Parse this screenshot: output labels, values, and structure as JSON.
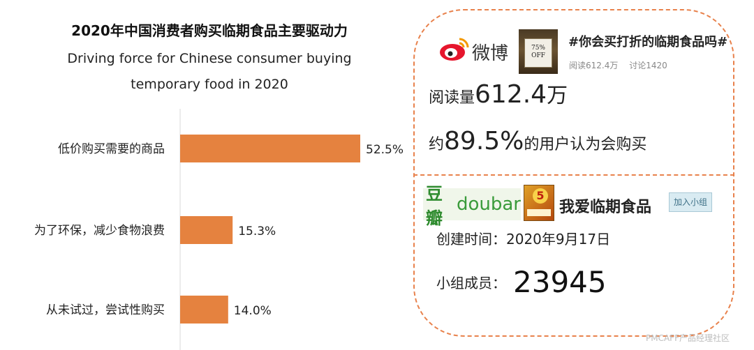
{
  "chart_data": {
    "type": "bar",
    "orientation": "horizontal",
    "title": "2020年中国消费者购买临期食品主要驱动力",
    "subtitle_lines": [
      "Driving force for Chinese consumer buying",
      "temporary food in 2020"
    ],
    "categories": [
      "低价购买需要的商品",
      "为了环保，减少食物浪费",
      "从未试过，尝试性购买"
    ],
    "values": [
      52.5,
      15.3,
      14.0
    ],
    "value_labels": [
      "52.5%",
      "15.3%",
      "14.0%"
    ],
    "bar_color": "#e5823f",
    "xlim": [
      0,
      60
    ],
    "grid": false
  },
  "weibo": {
    "logo_name": "weibo-logo",
    "name": "微博",
    "thumbnail_text": "75% OFF",
    "hashtag": "#你会买打折的临期食品吗#",
    "stat_reads": "阅读612.4万",
    "stat_discuss": "讨论1420",
    "reads_label": "阅读量",
    "reads_value": "612.4",
    "reads_unit": "万",
    "buy_prefix": "约",
    "buy_percent": "89.5%",
    "buy_suffix": "的用户认为会购买"
  },
  "douban": {
    "logo_cn": "豆瓣",
    "logo_en": "doubar",
    "thumbnail_badge": "5",
    "group_name": "我爱临期食品",
    "join_label": "加入小组",
    "created_label": "创建时间：",
    "created_date": "2020年9月17日",
    "members_label": "小组成员：",
    "members_count": "23945"
  },
  "accent_color": "#e8814b",
  "watermark": "PMCAFF产品经理社区"
}
